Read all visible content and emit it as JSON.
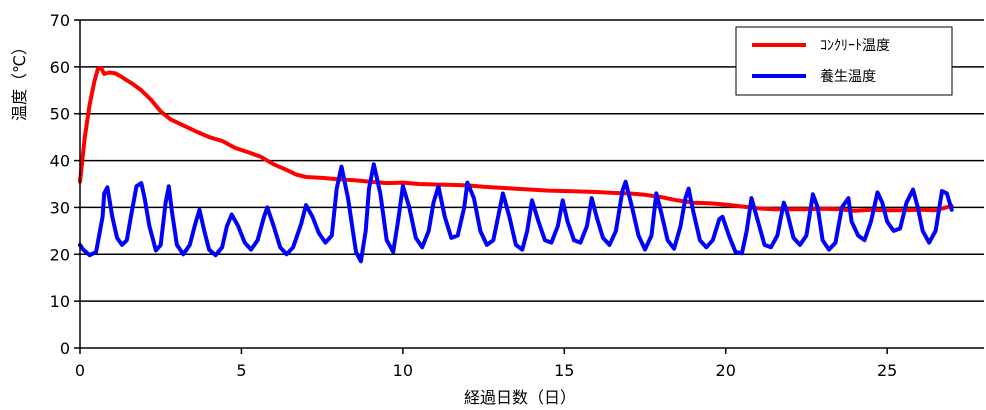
{
  "chart_data": {
    "type": "line",
    "title": "",
    "xlabel": "経過日数（日）",
    "ylabel": "温度（℃）",
    "xlim": [
      0,
      28
    ],
    "ylim": [
      0,
      70
    ],
    "x_ticks": [
      0,
      5,
      10,
      15,
      20,
      25
    ],
    "y_ticks": [
      0,
      10,
      20,
      30,
      40,
      50,
      60,
      70
    ],
    "grid": "horizontal",
    "legend_position": "top-right",
    "series": [
      {
        "name": "ｺﾝｸﾘｰﾄ温度",
        "color": "#ff0000",
        "x": [
          0,
          0.15,
          0.3,
          0.45,
          0.55,
          0.65,
          0.75,
          0.9,
          1.1,
          1.3,
          1.6,
          1.9,
          2.2,
          2.5,
          2.8,
          3.2,
          3.6,
          4.0,
          4.4,
          4.8,
          5.2,
          5.6,
          6.0,
          6.4,
          6.7,
          7.0,
          7.5,
          8.0,
          8.5,
          9.0,
          9.5,
          10.0,
          10.5,
          11.0,
          11.5,
          12.0,
          12.5,
          13.0,
          13.5,
          14.0,
          14.5,
          15.0,
          15.5,
          16.0,
          16.5,
          17.0,
          17.5,
          18.0,
          18.5,
          19.0,
          19.5,
          20.0,
          20.5,
          21.0,
          21.5,
          22.0,
          22.5,
          23.0,
          23.5,
          24.0,
          24.5,
          25.0,
          25.5,
          26.0,
          26.5,
          27.0
        ],
        "values": [
          35.5,
          45,
          52,
          57,
          59.5,
          59.8,
          58.5,
          58.8,
          58.6,
          57.8,
          56.5,
          55,
          53,
          50.5,
          48.8,
          47.5,
          46.2,
          45,
          44.2,
          42.7,
          41.8,
          40.8,
          39.2,
          38,
          37,
          36.5,
          36.3,
          36,
          35.8,
          35.5,
          35.2,
          35.3,
          35,
          34.9,
          34.8,
          34.7,
          34.4,
          34.2,
          34,
          33.8,
          33.6,
          33.5,
          33.4,
          33.3,
          33.1,
          33,
          32.7,
          32.2,
          31.5,
          31,
          30.9,
          30.6,
          30.2,
          29.8,
          29.6,
          29.6,
          29.6,
          29.7,
          29.6,
          29.3,
          29.5,
          29.4,
          29.4,
          29.5,
          29.4,
          30.3
        ]
      },
      {
        "name": "養生温度",
        "color": "#0000ff",
        "x": [
          0,
          0.1,
          0.3,
          0.5,
          0.7,
          0.75,
          0.85,
          1.0,
          1.15,
          1.3,
          1.45,
          1.6,
          1.75,
          1.9,
          2.0,
          2.15,
          2.35,
          2.5,
          2.65,
          2.75,
          2.85,
          3.0,
          3.2,
          3.4,
          3.55,
          3.7,
          3.85,
          4.0,
          4.2,
          4.4,
          4.55,
          4.7,
          4.9,
          5.1,
          5.3,
          5.5,
          5.7,
          5.8,
          6.0,
          6.2,
          6.4,
          6.6,
          6.85,
          7.0,
          7.2,
          7.4,
          7.6,
          7.8,
          7.95,
          8.1,
          8.3,
          8.55,
          8.7,
          8.85,
          8.95,
          9.1,
          9.3,
          9.5,
          9.7,
          9.85,
          10.0,
          10.2,
          10.4,
          10.6,
          10.8,
          10.95,
          11.1,
          11.3,
          11.5,
          11.7,
          11.9,
          12.0,
          12.2,
          12.4,
          12.6,
          12.8,
          12.95,
          13.1,
          13.3,
          13.5,
          13.7,
          13.85,
          14.0,
          14.2,
          14.4,
          14.6,
          14.8,
          14.95,
          15.1,
          15.3,
          15.5,
          15.7,
          15.85,
          16.0,
          16.2,
          16.4,
          16.6,
          16.8,
          16.9,
          17.1,
          17.3,
          17.5,
          17.7,
          17.85,
          18.0,
          18.2,
          18.4,
          18.6,
          18.75,
          18.85,
          19.0,
          19.2,
          19.4,
          19.6,
          19.8,
          19.9,
          20.1,
          20.3,
          20.5,
          20.65,
          20.8,
          21.0,
          21.2,
          21.4,
          21.6,
          21.8,
          21.9,
          22.1,
          22.3,
          22.5,
          22.7,
          22.85,
          23.0,
          23.2,
          23.4,
          23.6,
          23.8,
          23.9,
          24.1,
          24.3,
          24.5,
          24.7,
          24.85,
          25.0,
          25.2,
          25.4,
          25.6,
          25.8,
          25.95,
          26.1,
          26.3,
          26.5,
          26.7,
          26.85,
          27.0
        ],
        "values": [
          22,
          21,
          19.8,
          20.5,
          28,
          33,
          34.3,
          28,
          23.5,
          22,
          23,
          29,
          34.5,
          35.2,
          32,
          26,
          20.8,
          22,
          31,
          34.5,
          29,
          22,
          20,
          22,
          26,
          29.5,
          25,
          21,
          19.8,
          21.5,
          26,
          28.5,
          26,
          22.5,
          21,
          23,
          28,
          30,
          26,
          21.5,
          20,
          21.5,
          26.5,
          30.5,
          28,
          24.5,
          22.5,
          24,
          34,
          38.7,
          32,
          20.5,
          18.5,
          25,
          34,
          39.2,
          33,
          23,
          20.5,
          27,
          34.6,
          30,
          23.5,
          21.5,
          25,
          31,
          34.5,
          28,
          23.5,
          24,
          30,
          35.3,
          32,
          25,
          22,
          23,
          28,
          33,
          28,
          22,
          21,
          25,
          31.5,
          27,
          23,
          22.5,
          26,
          31.5,
          27,
          23,
          22.5,
          26,
          32,
          28,
          23.5,
          22,
          25,
          33.5,
          35.5,
          30,
          24,
          21,
          24,
          33,
          29,
          23,
          21.2,
          26,
          32,
          34,
          29,
          23,
          21.5,
          23,
          27.5,
          28,
          24,
          20.5,
          20.2,
          25,
          32,
          27,
          22,
          21.5,
          24,
          31,
          29,
          23.5,
          22,
          24,
          32.8,
          30,
          23,
          21,
          22.5,
          30,
          32,
          27,
          24,
          23,
          27,
          33.2,
          31,
          27,
          25,
          25.5,
          31,
          33.8,
          30,
          25,
          22.5,
          25,
          33.5,
          33,
          29.5
        ]
      }
    ]
  }
}
